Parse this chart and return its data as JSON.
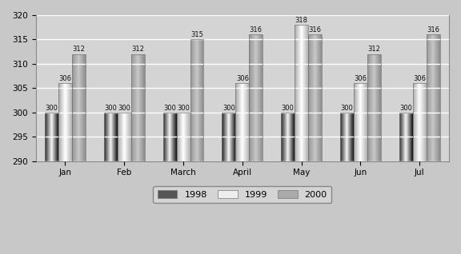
{
  "categories": [
    "Jan",
    "Feb",
    "March",
    "April",
    "May",
    "Jun",
    "Jul"
  ],
  "series": {
    "1998": [
      300,
      300,
      300,
      300,
      300,
      300,
      300
    ],
    "1999": [
      306,
      300,
      300,
      306,
      318,
      306,
      306
    ],
    "2000": [
      312,
      312,
      315,
      316,
      316,
      312,
      316
    ]
  },
  "ylim": [
    290,
    320
  ],
  "yticks": [
    290,
    295,
    300,
    305,
    310,
    315,
    320
  ],
  "bg_color": "#c8c8c8",
  "plot_bg_color": "#d4d4d4",
  "grid_color": "#ffffff",
  "bar_width": 0.23,
  "legend_labels": [
    "1998",
    "1999",
    "2000"
  ]
}
